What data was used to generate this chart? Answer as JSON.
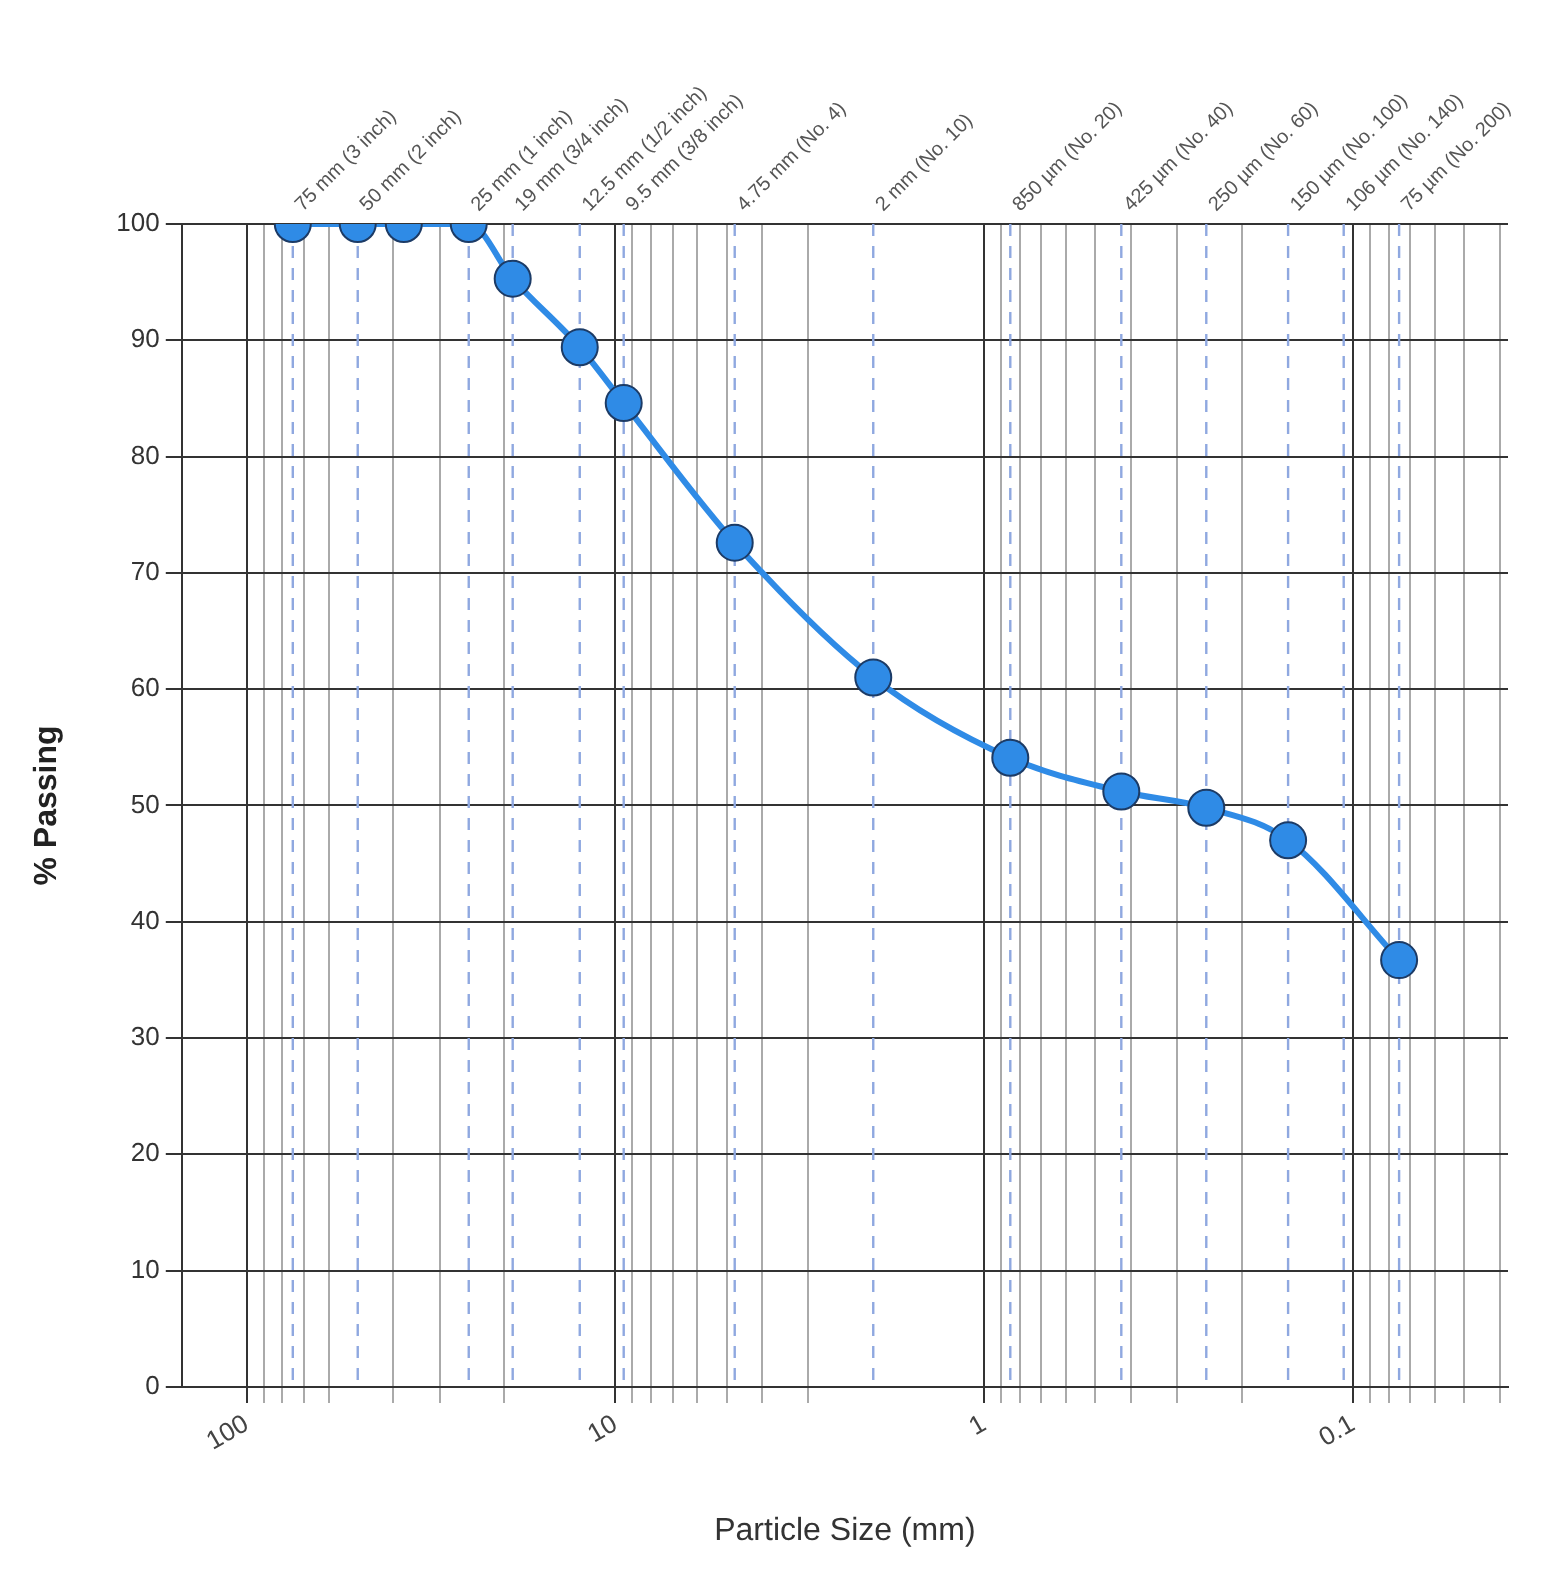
{
  "chart_data": {
    "type": "line",
    "xlabel": "Particle Size (mm)",
    "ylabel": "% Passing",
    "log": "x",
    "xlim": [
      150,
      0.038
    ],
    "xticks": [
      {
        "value": 100,
        "label": "100"
      },
      {
        "value": 90,
        "label": null
      },
      {
        "value": 80,
        "label": null
      },
      {
        "value": 70,
        "label": null
      },
      {
        "value": 60,
        "label": null
      },
      {
        "value": 40,
        "label": null
      },
      {
        "value": 30,
        "label": null
      },
      {
        "value": 20,
        "label": null
      },
      {
        "value": 10,
        "label": "10"
      },
      {
        "value": 9,
        "label": null
      },
      {
        "value": 8,
        "label": null
      },
      {
        "value": 7,
        "label": null
      },
      {
        "value": 6,
        "label": null
      },
      {
        "value": 5,
        "label": null
      },
      {
        "value": 4,
        "label": null
      },
      {
        "value": 3,
        "label": null
      },
      {
        "value": 1,
        "label": "1"
      },
      {
        "value": 0.9,
        "label": null
      },
      {
        "value": 0.8,
        "label": null
      },
      {
        "value": 0.7,
        "label": null
      },
      {
        "value": 0.6,
        "label": null
      },
      {
        "value": 0.5,
        "label": null
      },
      {
        "value": 0.4,
        "label": null
      },
      {
        "value": 0.3,
        "label": null
      },
      {
        "value": 0.2,
        "label": null
      },
      {
        "value": 0.1,
        "label": "0.1"
      },
      {
        "value": 0.09,
        "label": null
      },
      {
        "value": 0.08,
        "label": null
      },
      {
        "value": 0.07,
        "label": null
      },
      {
        "value": 0.06,
        "label": null
      },
      {
        "value": 0.05,
        "label": null
      },
      {
        "value": 0.04,
        "label": null
      }
    ],
    "ylim": [
      0,
      100
    ],
    "yticks": [
      0,
      10,
      20,
      30,
      40,
      50,
      60,
      70,
      80,
      90,
      100
    ],
    "grid": true,
    "legend": false,
    "marker": "circle",
    "line_style": "solid",
    "series": [
      {
        "color": "#2f8be6",
        "x": [
          75,
          50,
          37.5,
          25,
          19,
          12.5,
          9.5,
          4.75,
          2,
          0.85,
          0.425,
          0.25,
          0.15,
          0.075
        ],
        "values": [
          100,
          100,
          100,
          100,
          95.3,
          89.4,
          84.6,
          72.6,
          61,
          54.1,
          51.2,
          49.8,
          47,
          36.7
        ]
      }
    ],
    "ref_lines": [
      {
        "axis": "x",
        "value": 75,
        "label": "75 mm (3 inch)",
        "color": "#8fa8e0",
        "line_style": "dashed"
      },
      {
        "axis": "x",
        "value": 50,
        "label": "50 mm (2 inch)",
        "color": "#8fa8e0",
        "line_style": "dashed"
      },
      {
        "axis": "x",
        "value": 25,
        "label": "25 mm (1 inch)",
        "color": "#8fa8e0",
        "line_style": "dashed"
      },
      {
        "axis": "x",
        "value": 19,
        "label": "19 mm (3/4 inch)",
        "color": "#8fa8e0",
        "line_style": "dashed"
      },
      {
        "axis": "x",
        "value": 12.5,
        "label": "12.5 mm (1/2 inch)",
        "color": "#8fa8e0",
        "line_style": "dashed"
      },
      {
        "axis": "x",
        "value": 9.5,
        "label": "9.5 mm (3/8 inch)",
        "color": "#8fa8e0",
        "line_style": "dashed"
      },
      {
        "axis": "x",
        "value": 4.75,
        "label": "4.75 mm (No. 4)",
        "color": "#8fa8e0",
        "line_style": "dashed"
      },
      {
        "axis": "x",
        "value": 2,
        "label": "2 mm (No. 10)",
        "color": "#8fa8e0",
        "line_style": "dashed"
      },
      {
        "axis": "x",
        "value": 0.85,
        "label": "850 µm (No. 20)",
        "color": "#8fa8e0",
        "line_style": "dashed"
      },
      {
        "axis": "x",
        "value": 0.425,
        "label": "425 µm (No. 40)",
        "color": "#8fa8e0",
        "line_style": "dashed"
      },
      {
        "axis": "x",
        "value": 0.25,
        "label": "250 µm (No. 60)",
        "color": "#8fa8e0",
        "line_style": "dashed"
      },
      {
        "axis": "x",
        "value": 0.15,
        "label": "150 µm (No. 100)",
        "color": "#8fa8e0",
        "line_style": "dashed"
      },
      {
        "axis": "x",
        "value": 0.106,
        "label": "106 µm (No. 140)",
        "color": "#8fa8e0",
        "line_style": "dashed"
      },
      {
        "axis": "x",
        "value": 0.075,
        "label": "75 µm (No. 200)",
        "color": "#8fa8e0",
        "line_style": "dashed"
      }
    ]
  }
}
